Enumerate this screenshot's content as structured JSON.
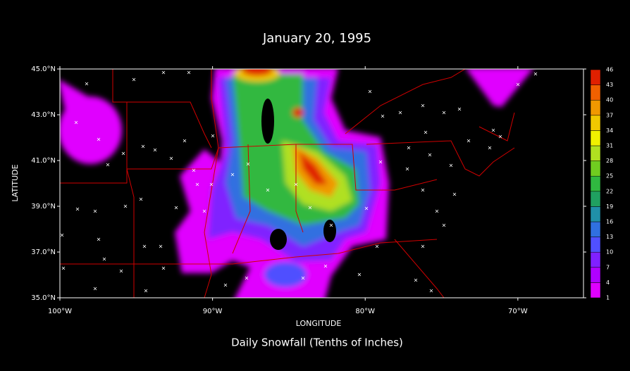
{
  "map": {
    "title": "January 20, 1995",
    "subtitle": "Daily Snowfall (Tenths of Inches)",
    "x_label": "LONGITUDE",
    "y_label": "LATITUDE",
    "xlim": [
      -100,
      -65.7
    ],
    "ylim": [
      35,
      45
    ],
    "xticks": [
      {
        "value": -100,
        "label": "100°W"
      },
      {
        "value": -90,
        "label": "90°W"
      },
      {
        "value": -80,
        "label": "80°W"
      },
      {
        "value": -70,
        "label": "70°W"
      }
    ],
    "yticks": [
      {
        "value": 35,
        "label": "35.0°N"
      },
      {
        "value": 37,
        "label": "37.0°N"
      },
      {
        "value": 39,
        "label": "39.0°N"
      },
      {
        "value": 41,
        "label": "41.0°N"
      },
      {
        "value": 43,
        "label": "43.0°N"
      },
      {
        "value": 45,
        "label": "45.0°N"
      }
    ]
  },
  "colorbar": {
    "levels": [
      1,
      4,
      7,
      10,
      13,
      16,
      19,
      22,
      25,
      28,
      31,
      34,
      37,
      40,
      43,
      46
    ],
    "colors": [
      "#e000ff",
      "#b000ff",
      "#8020ff",
      "#5050ff",
      "#3070e0",
      "#2090a8",
      "#20a060",
      "#30b840",
      "#70cc20",
      "#b0e020",
      "#f0f000",
      "#f0c800",
      "#f09800",
      "#f06000",
      "#e02000"
    ]
  }
}
